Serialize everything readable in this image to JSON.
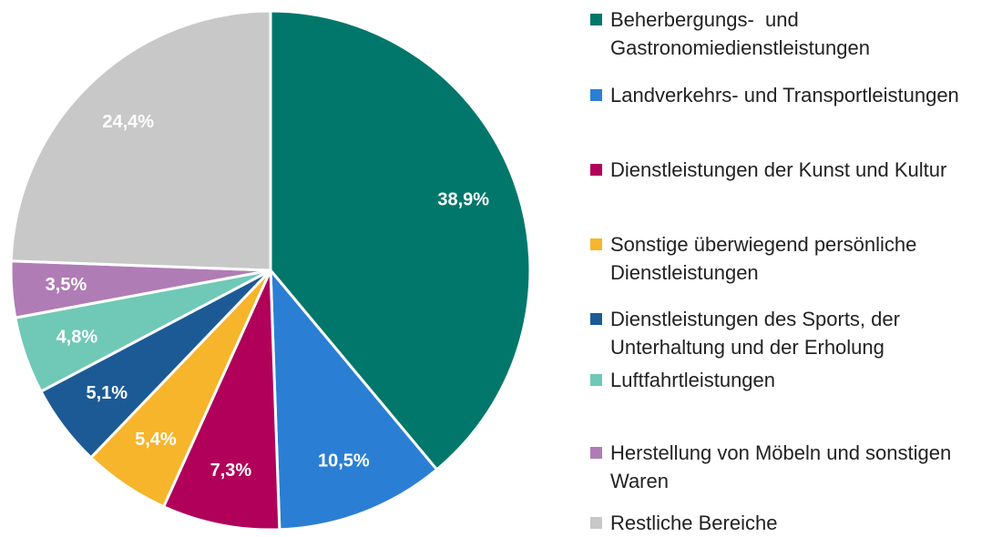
{
  "chart_data": {
    "type": "pie",
    "categories": [
      "Beherbergungs-  und Gastronomiedienstleistungen",
      "Landverkehrs- und Transportleistungen",
      "Dienstleistungen der Kunst und Kultur",
      "Sonstige überwiegend persönliche Dienstleistungen",
      "Dienstleistungen des Sports, der Unterhaltung und der Erholung",
      "Luftfahrtleistungen",
      "Herstellung von Möbeln und sonstigen Waren",
      "Restliche Bereiche"
    ],
    "values": [
      38.9,
      10.5,
      7.3,
      5.4,
      5.1,
      4.8,
      3.5,
      24.4
    ],
    "value_labels": [
      "38,9%",
      "10,5%",
      "7,3%",
      "5,4%",
      "5,1%",
      "4,8%",
      "3,5%",
      "24,4%"
    ],
    "colors": [
      "#00776a",
      "#2a7fd4",
      "#b0005a",
      "#f7b52c",
      "#1c5a96",
      "#6fc9b6",
      "#b07cb6",
      "#c8c8c8"
    ]
  }
}
